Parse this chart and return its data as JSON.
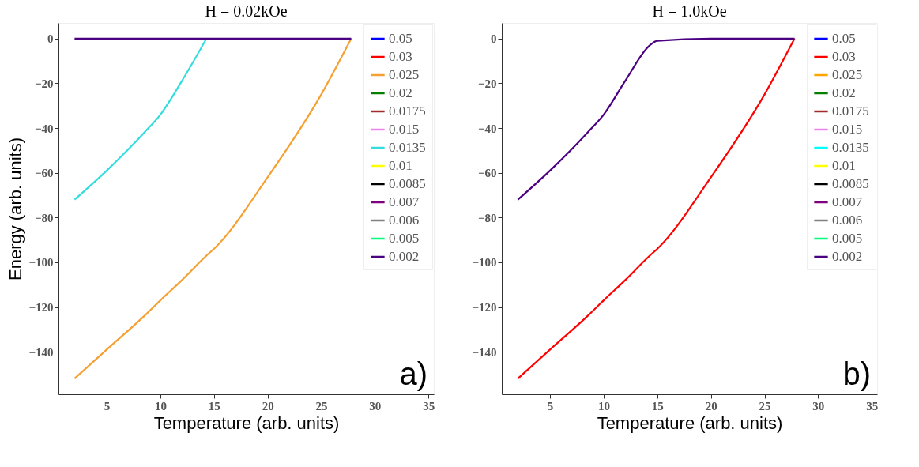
{
  "chart_data": [
    {
      "type": "line",
      "title": "H = 0.02kOe",
      "xlabel": "Temperature (arb. units)",
      "ylabel": "Energy (arb. units)",
      "x": [
        2,
        5,
        8.5,
        10,
        12,
        14.3,
        15,
        20,
        25,
        27.8
      ],
      "xlim": [
        0.5,
        35.5
      ],
      "xticks": [
        5,
        10,
        15,
        20,
        25,
        30,
        35
      ],
      "ylim": [
        -159,
        7
      ],
      "yticks": [
        -140,
        -120,
        -100,
        -80,
        -60,
        -40,
        -20,
        0
      ],
      "grid": false,
      "legend": "top right",
      "annotations": [
        "a)"
      ],
      "series": [
        {
          "name": "0.05",
          "color": "#0000ff",
          "values": [
            null,
            null,
            null,
            null,
            null,
            null,
            null,
            null,
            null,
            null
          ]
        },
        {
          "name": "0.03",
          "color": "#ff0000",
          "values": [
            null,
            null,
            null,
            null,
            null,
            null,
            null,
            null,
            null,
            null
          ]
        },
        {
          "name": "0.025",
          "color": "#f5a030",
          "values": [
            -152,
            -139,
            -124,
            -117,
            -108,
            -97,
            -94,
            -62,
            -25,
            0
          ]
        },
        {
          "name": "0.02",
          "color": "#008000",
          "values": [
            null,
            null,
            null,
            null,
            null,
            null,
            null,
            null,
            null,
            null
          ]
        },
        {
          "name": "0.0175",
          "color": "#a52a2a",
          "values": [
            null,
            null,
            null,
            null,
            null,
            null,
            null,
            null,
            null,
            null
          ]
        },
        {
          "name": "0.015",
          "color": "#ee82ee",
          "values": [
            null,
            null,
            null,
            null,
            null,
            null,
            null,
            null,
            null,
            null
          ]
        },
        {
          "name": "0.0135",
          "color": "#33dddd",
          "values": [
            -72,
            -59,
            -42,
            -34,
            -19,
            0,
            null,
            null,
            null,
            null
          ]
        },
        {
          "name": "0.01",
          "color": "#ffff00",
          "values": [
            null,
            null,
            null,
            null,
            null,
            null,
            null,
            null,
            null,
            null
          ]
        },
        {
          "name": "0.0085",
          "color": "#000000",
          "values": [
            null,
            null,
            null,
            null,
            null,
            null,
            null,
            null,
            null,
            null
          ]
        },
        {
          "name": "0.007",
          "color": "#800080",
          "values": [
            null,
            null,
            null,
            null,
            null,
            null,
            null,
            null,
            null,
            null
          ]
        },
        {
          "name": "0.006",
          "color": "#808080",
          "values": [
            null,
            null,
            null,
            null,
            null,
            null,
            null,
            null,
            null,
            null
          ]
        },
        {
          "name": "0.005",
          "color": "#00ff7f",
          "values": [
            null,
            null,
            null,
            null,
            null,
            null,
            null,
            null,
            null,
            null
          ]
        },
        {
          "name": "0.002",
          "color": "#4b0082",
          "values": [
            0,
            0,
            0,
            0,
            0,
            0,
            0,
            0,
            0,
            0
          ]
        }
      ]
    },
    {
      "type": "line",
      "title": "H = 1.0kOe",
      "xlabel": "Temperature (arb. units)",
      "x": [
        2,
        5,
        8.5,
        10,
        12,
        14.3,
        15,
        20,
        25,
        27.8
      ],
      "xlim": [
        0.5,
        35.5
      ],
      "xticks": [
        5,
        10,
        15,
        20,
        25,
        30,
        35
      ],
      "ylim": [
        -159,
        7
      ],
      "yticks": [
        -140,
        -120,
        -100,
        -80,
        -60,
        -40,
        -20,
        0
      ],
      "grid": false,
      "legend": "top right",
      "annotations": [
        "b)"
      ],
      "series": [
        {
          "name": "0.05",
          "color": "#0000ff",
          "values": [
            null,
            null,
            null,
            null,
            null,
            null,
            null,
            null,
            null,
            null
          ]
        },
        {
          "name": "0.03",
          "color": "#ff0000",
          "values": [
            -152,
            -139,
            -124,
            -117,
            -108,
            -97,
            -94,
            -62,
            -25,
            0
          ]
        },
        {
          "name": "0.025",
          "color": "#ffa500",
          "values": [
            null,
            null,
            null,
            null,
            null,
            null,
            null,
            null,
            null,
            null
          ]
        },
        {
          "name": "0.02",
          "color": "#008000",
          "values": [
            null,
            null,
            null,
            null,
            null,
            null,
            null,
            null,
            null,
            null
          ]
        },
        {
          "name": "0.0175",
          "color": "#a52a2a",
          "values": [
            null,
            null,
            null,
            null,
            null,
            null,
            null,
            null,
            null,
            null
          ]
        },
        {
          "name": "0.015",
          "color": "#ee82ee",
          "values": [
            null,
            null,
            null,
            null,
            null,
            null,
            null,
            null,
            null,
            null
          ]
        },
        {
          "name": "0.0135",
          "color": "#00ffff",
          "values": [
            null,
            null,
            null,
            null,
            null,
            null,
            null,
            null,
            null,
            null
          ]
        },
        {
          "name": "0.01",
          "color": "#ffff00",
          "values": [
            null,
            null,
            null,
            null,
            null,
            null,
            null,
            null,
            null,
            null
          ]
        },
        {
          "name": "0.0085",
          "color": "#000000",
          "values": [
            null,
            null,
            null,
            null,
            null,
            null,
            null,
            null,
            null,
            null
          ]
        },
        {
          "name": "0.007",
          "color": "#800080",
          "values": [
            null,
            null,
            null,
            null,
            null,
            null,
            null,
            null,
            null,
            null
          ]
        },
        {
          "name": "0.006",
          "color": "#808080",
          "values": [
            null,
            null,
            null,
            null,
            null,
            null,
            null,
            null,
            null,
            null
          ]
        },
        {
          "name": "0.005",
          "color": "#00ff7f",
          "values": [
            null,
            null,
            null,
            null,
            null,
            null,
            null,
            null,
            null,
            null
          ]
        },
        {
          "name": "0.002",
          "color": "#4b0082",
          "values": [
            -72,
            -59,
            -42,
            -34,
            -19,
            -3,
            -1,
            0,
            0,
            0
          ]
        }
      ]
    }
  ]
}
